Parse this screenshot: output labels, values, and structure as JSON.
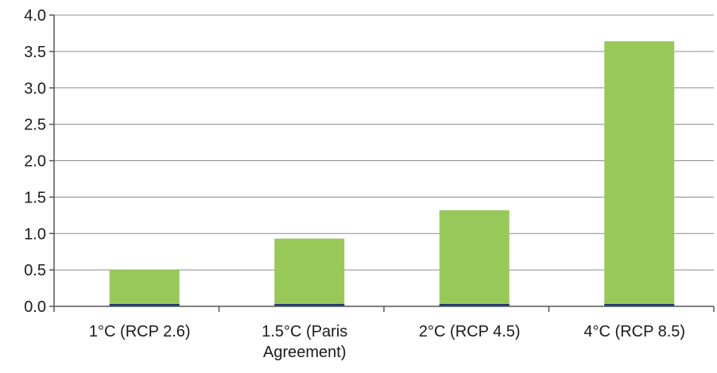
{
  "chart_data": {
    "type": "bar",
    "title": "",
    "xlabel": "",
    "ylabel": "",
    "categories": [
      [
        "1°C (RCP 2.6)"
      ],
      [
        "1.5°C (Paris",
        "Agreement)"
      ],
      [
        "2°C (RCP 4.5)"
      ],
      [
        "4°C (RCP 8.5)"
      ]
    ],
    "values": [
      0.5,
      0.93,
      1.32,
      3.64
    ],
    "ylim": [
      0,
      4.0
    ],
    "yticks": [
      "0.0",
      "0.5",
      "1.0",
      "1.5",
      "2.0",
      "2.5",
      "3.0",
      "3.5",
      "4.0"
    ],
    "grid": true,
    "legend": "none",
    "colors": {
      "bar": "#99c85a",
      "bar_base": "#1f3b73",
      "grid": "#8c8c8c",
      "axis": "#555555",
      "text": "#1a1a1a"
    }
  }
}
